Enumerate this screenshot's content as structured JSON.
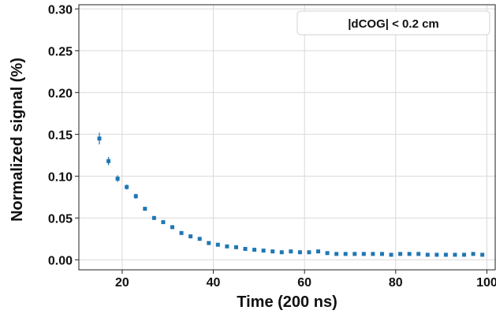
{
  "chart_data": {
    "type": "scatter",
    "xlabel": "Time (200 ns)",
    "ylabel": "Normalized signal (%)",
    "xlim": [
      10.5,
      102
    ],
    "ylim": [
      -0.012,
      0.305
    ],
    "xticks": [
      20,
      40,
      60,
      80,
      100
    ],
    "xtick_labels": [
      "20",
      "40",
      "60",
      "80",
      "100"
    ],
    "yticks": [
      0.0,
      0.05,
      0.1,
      0.15,
      0.2,
      0.25,
      0.3
    ],
    "ytick_labels": [
      "0.00",
      "0.05",
      "0.10",
      "0.15",
      "0.20",
      "0.25",
      "0.30"
    ],
    "grid": true,
    "legend_position": "top-right",
    "annotation": "|dCOG| < 0.2 cm",
    "marker_color": "#1f77b4",
    "series": [
      {
        "x": [
          15,
          17,
          19,
          21,
          23,
          25,
          27,
          29,
          31,
          33,
          35,
          37,
          39,
          41,
          43,
          45,
          47,
          49,
          51,
          53,
          55,
          57,
          59,
          61,
          63,
          65,
          67,
          69,
          71,
          73,
          75,
          77,
          79,
          81,
          83,
          85,
          87,
          89,
          91,
          93,
          95,
          97,
          99
        ],
        "y": [
          0.145,
          0.118,
          0.097,
          0.087,
          0.076,
          0.061,
          0.05,
          0.045,
          0.039,
          0.032,
          0.028,
          0.025,
          0.02,
          0.018,
          0.016,
          0.015,
          0.013,
          0.012,
          0.011,
          0.01,
          0.009,
          0.01,
          0.009,
          0.009,
          0.01,
          0.008,
          0.007,
          0.007,
          0.007,
          0.007,
          0.007,
          0.007,
          0.006,
          0.007,
          0.007,
          0.007,
          0.006,
          0.006,
          0.006,
          0.006,
          0.006,
          0.007,
          0.006
        ],
        "yerr": [
          0.007,
          0.005,
          0.004,
          0.003,
          0.003,
          0.002,
          0.002,
          0.002,
          0.001,
          0.001,
          0.001,
          0.001,
          0.001,
          0.001,
          0.001,
          0.001,
          0.001,
          0.001,
          0.001,
          0.001,
          0.001,
          0.001,
          0.001,
          0.001,
          0.001,
          0.001,
          0.001,
          0.001,
          0.001,
          0.001,
          0.001,
          0.001,
          0.001,
          0.001,
          0.001,
          0.001,
          0.001,
          0.001,
          0.001,
          0.001,
          0.001,
          0.001,
          0.001
        ]
      }
    ]
  }
}
